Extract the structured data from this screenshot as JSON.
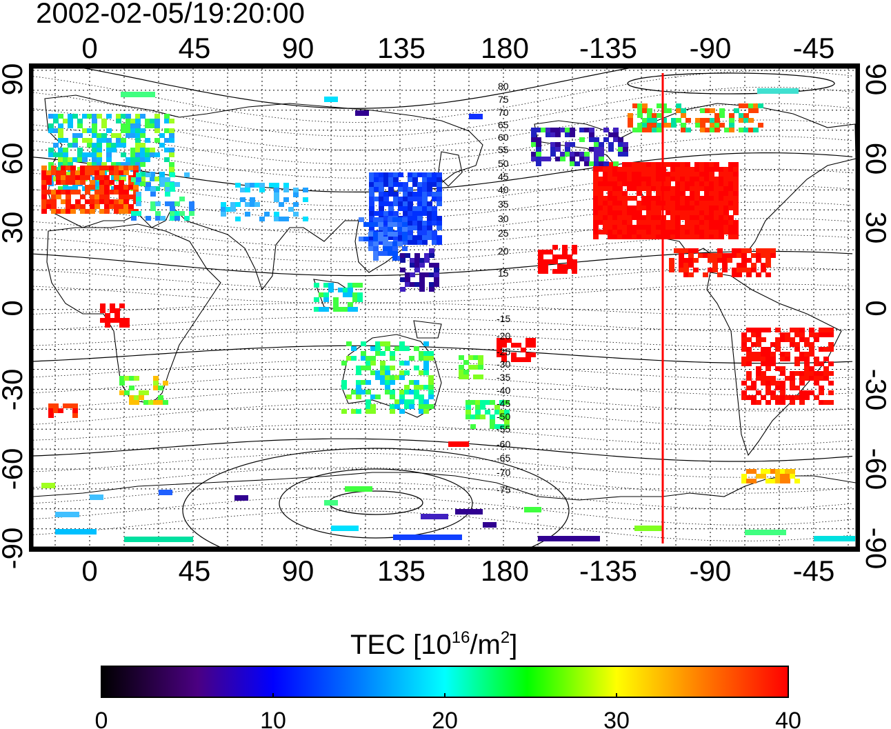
{
  "title": "2002-02-05/19:20:00",
  "map": {
    "top_lon_ticks": [
      "0",
      "45",
      "90",
      "135",
      "180",
      "-135",
      "-90",
      "-45"
    ],
    "bottom_lon_ticks": [
      "0",
      "45",
      "90",
      "135",
      "180",
      "-135",
      "-90",
      "-45"
    ],
    "left_lat_ticks": [
      "90",
      "60",
      "30",
      "0",
      "-30",
      "-60",
      "-90"
    ],
    "right_lat_ticks": [
      "90",
      "60",
      "30",
      "0",
      "-30",
      "-60",
      "-90"
    ],
    "contour_labels_north": [
      "80",
      "75",
      "70",
      "65",
      "60",
      "55",
      "50",
      "45",
      "40",
      "35",
      "30",
      "25",
      "20",
      "15"
    ],
    "contour_labels_south": [
      "-15",
      "-20",
      "-25",
      "-30",
      "-35",
      "-40",
      "-45",
      "-50",
      "-55",
      "-60",
      "-65",
      "-70",
      "-75"
    ],
    "marker_line_color": "#ff0000",
    "grid": "dotted"
  },
  "colorbar": {
    "label_main": "TEC  [10",
    "label_exp1": "16",
    "label_mid": "/m",
    "label_exp2": "2",
    "label_end": "]",
    "ticks": [
      "0",
      "10",
      "20",
      "30",
      "40"
    ],
    "range": [
      0,
      40
    ],
    "colormap": [
      "#000000",
      "#4b0082",
      "#0000ff",
      "#00ffff",
      "#00ff00",
      "#ffff00",
      "#ff8000",
      "#ff0000"
    ]
  }
}
